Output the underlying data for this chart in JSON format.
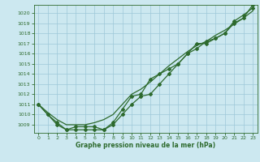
{
  "x": [
    0,
    1,
    2,
    3,
    4,
    5,
    6,
    7,
    8,
    9,
    10,
    11,
    12,
    13,
    14,
    15,
    16,
    17,
    18,
    19,
    20,
    21,
    22,
    23
  ],
  "line_markers1": [
    1011,
    1010,
    1009,
    1008.5,
    1008.5,
    1008.5,
    1008.5,
    1008.5,
    1009,
    1010,
    1011,
    1011.8,
    1012,
    1013,
    1014,
    1015,
    1016,
    1016.5,
    1017.2,
    1017.5,
    1018,
    1019.2,
    1019.8,
    1020.5
  ],
  "line_markers2": [
    1011,
    1010,
    1009.2,
    1008.5,
    1008.8,
    1008.8,
    1008.8,
    1008.5,
    1009.2,
    1010.5,
    1011.8,
    1012,
    1013.5,
    1014,
    1014.5,
    1015,
    1016,
    1017,
    1017,
    1017.5,
    1018,
    1019,
    1019.5,
    1020.8
  ],
  "line_smooth": [
    1011,
    1010.2,
    1009.5,
    1009,
    1009,
    1009,
    1009.2,
    1009.5,
    1010,
    1011,
    1012,
    1012.5,
    1013.2,
    1014,
    1014.8,
    1015.5,
    1016.2,
    1016.8,
    1017.2,
    1017.8,
    1018.3,
    1018.9,
    1019.5,
    1020.2
  ],
  "line_color": "#2d6a2d",
  "background_color": "#cce8f0",
  "grid_color": "#9ec8d8",
  "xlabel": "Graphe pression niveau de la mer (hPa)",
  "ylim": [
    1008.2,
    1020.8
  ],
  "xlim": [
    -0.5,
    23.5
  ],
  "yticks": [
    1009,
    1010,
    1011,
    1012,
    1013,
    1014,
    1015,
    1016,
    1017,
    1018,
    1019,
    1020
  ],
  "xticks": [
    0,
    1,
    2,
    3,
    4,
    5,
    6,
    7,
    8,
    9,
    10,
    11,
    12,
    13,
    14,
    15,
    16,
    17,
    18,
    19,
    20,
    21,
    22,
    23
  ]
}
